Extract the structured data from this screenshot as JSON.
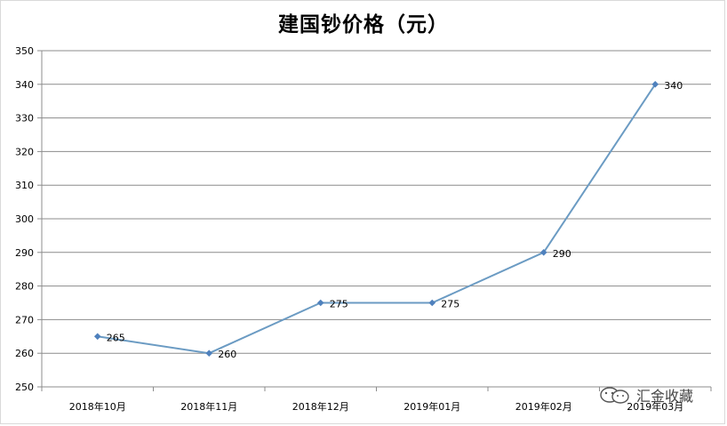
{
  "chart_data": {
    "type": "line",
    "title": "建国钞价格（元）",
    "categories": [
      "2018年10月",
      "2018年11月",
      "2018年12月",
      "2019年01月",
      "2019年02月",
      "2019年03月"
    ],
    "values": [
      265,
      260,
      275,
      275,
      290,
      340
    ],
    "ylim": [
      250,
      350
    ],
    "yticks": [
      250,
      260,
      270,
      280,
      290,
      300,
      310,
      320,
      330,
      340,
      350
    ],
    "grid": true,
    "line_color": "#6b9bc3",
    "marker_color": "#4f81bd"
  },
  "watermark": {
    "text": "汇金收藏",
    "icon": "wechat-icon"
  }
}
